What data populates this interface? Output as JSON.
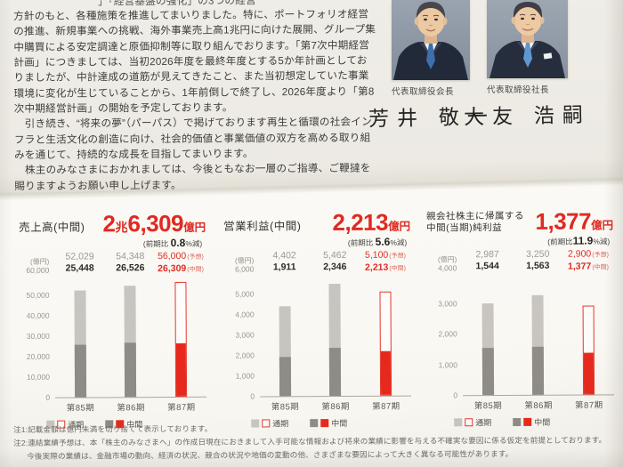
{
  "letter": {
    "partial_top_line": "」「経営基盤の強化」の3つの経営",
    "lines": [
      "方針のもと、各種施策を推進してまいりました。特に、ポートフォリオ経営",
      "の推進、新規事業への挑戦、海外事業売上高1兆円に向けた展開、グループ集",
      "中購買による安定調達と原価抑制等に取り組んでおります。「第7次中期経営",
      "計画」につきましては、当初2026年度を最終年度とする5か年計画としてお",
      "りましたが、中計達成の道筋が見えてきたこと、また当初想定していた事業",
      "環境に変化が生じていることから、1年前倒しで終了し、2026年度より「第8",
      "次中期経営計画」の開始を予定しております。",
      "　引き続き、“将来の夢”（パーパス）で掲げております再生と循環の社会イン",
      "フラと生活文化の創造に向け、社会的価値と事業価値の双方を高める取り組",
      "みを通じて、持続的な成長を目指してまいります。",
      "　株主のみなさまにおかれましては、今後ともなお一層のご指導、ご鞭撻を",
      "賜りますようお願い申し上げます。"
    ]
  },
  "executives": [
    {
      "title": "代表取締役会長",
      "signature": "芳井 敬一"
    },
    {
      "title": "代表取締役社長",
      "signature": "大友 浩嗣"
    }
  ],
  "colors": {
    "accent_red": "#df2a22",
    "bar_red": "#e6291c",
    "bar_gray_light": "#c8c5c0",
    "bar_gray_dark": "#8f8b85"
  },
  "chart_data": [
    {
      "type": "bar",
      "title": "売上高（中間）",
      "title_lines": [
        "売上高(中間)"
      ],
      "headline_parts": [
        {
          "t": "2",
          "k": "big"
        },
        {
          "t": "兆",
          "k": "mid"
        },
        {
          "t": "6,309",
          "k": "big"
        },
        {
          "t": "億円",
          "k": "unit"
        }
      ],
      "yoy_note": {
        "pre": "(前期比 ",
        "val": "0.8",
        "post": "%減)"
      },
      "unit_label": "(億円)",
      "ymax": 60000,
      "ymax_label": "60,000",
      "yticks": [
        {
          "v": 50000,
          "label": "50,000"
        },
        {
          "v": 40000,
          "label": "40,000"
        },
        {
          "v": 30000,
          "label": "30,000"
        },
        {
          "v": 20000,
          "label": "20,000"
        },
        {
          "v": 10000,
          "label": "10,000"
        },
        {
          "v": 0,
          "label": "0"
        }
      ],
      "categories": [
        "第85期",
        "第86期",
        "第87期"
      ],
      "series": [
        {
          "name": "通期",
          "values": [
            52029,
            54348,
            56000
          ],
          "labels": [
            "52,029",
            "54,348",
            "56,000"
          ]
        },
        {
          "name": "中間",
          "values": [
            25448,
            26526,
            26309
          ],
          "labels": [
            "25,448",
            "26,526",
            "26,309"
          ]
        }
      ],
      "third_is_forecast": true,
      "suffix_forecast": "(予想)",
      "suffix_interim": "(中間)"
    },
    {
      "type": "bar",
      "title": "営業利益（中間）",
      "title_lines": [
        "営業利益(中間)"
      ],
      "headline_parts": [
        {
          "t": "2,213",
          "k": "big"
        },
        {
          "t": "億円",
          "k": "unit"
        }
      ],
      "yoy_note": {
        "pre": "(前期比 ",
        "val": "5.6",
        "post": "%減)"
      },
      "unit_label": "(億円)",
      "ymax": 6000,
      "ymax_label": "6,000",
      "yticks": [
        {
          "v": 5000,
          "label": "5,000"
        },
        {
          "v": 4000,
          "label": "4,000"
        },
        {
          "v": 3000,
          "label": "3,000"
        },
        {
          "v": 2000,
          "label": "2,000"
        },
        {
          "v": 1000,
          "label": "1,000"
        },
        {
          "v": 0,
          "label": "0"
        }
      ],
      "categories": [
        "第85期",
        "第86期",
        "第87期"
      ],
      "series": [
        {
          "name": "通期",
          "values": [
            4402,
            5462,
            5100
          ],
          "labels": [
            "4,402",
            "5,462",
            "5,100"
          ]
        },
        {
          "name": "中間",
          "values": [
            1911,
            2346,
            2213
          ],
          "labels": [
            "1,911",
            "2,346",
            "2,213"
          ]
        }
      ],
      "third_is_forecast": true,
      "suffix_forecast": "(予想)",
      "suffix_interim": "(中間)"
    },
    {
      "type": "bar",
      "title": "親会社株主に帰属する中間（当期）純利益",
      "title_lines": [
        "親会社株主に帰属する",
        "中間(当期)純利益"
      ],
      "headline_parts": [
        {
          "t": "1,377",
          "k": "big"
        },
        {
          "t": "億円",
          "k": "unit"
        }
      ],
      "yoy_note": {
        "pre": "(前期比",
        "val": "11.9",
        "post": "%減)"
      },
      "unit_label": "(億円)",
      "ymax": 4000,
      "ymax_label": "4,000",
      "yticks": [
        {
          "v": 3000,
          "label": "3,000"
        },
        {
          "v": 2000,
          "label": "2,000"
        },
        {
          "v": 1000,
          "label": "1,000"
        },
        {
          "v": 0,
          "label": "0"
        }
      ],
      "categories": [
        "第85期",
        "第86期",
        "第87期"
      ],
      "series": [
        {
          "name": "通期",
          "values": [
            2987,
            3250,
            2900
          ],
          "labels": [
            "2,987",
            "3,250",
            "2,900"
          ]
        },
        {
          "name": "中間",
          "values": [
            1544,
            1563,
            1377
          ],
          "labels": [
            "1,544",
            "1,563",
            "1,377"
          ]
        }
      ],
      "third_is_forecast": true,
      "suffix_forecast": "(予想)",
      "suffix_interim": "(中間)"
    }
  ],
  "footnotes": {
    "lines": [
      "注1:記載金額は億円未満を切り捨てて表示しております。",
      "注2:連結業績予想は、本「株主のみなさまへ」の作成日現在におきまして入手可能な情報および将来の業績に影響を与える不確実な要因に係る仮定を前提としております。",
      "今後実際の業績は、金融市場の動向、経済の状況、競合の状況や地価の変動の他、さまざまな要因によって大きく異なる可能性があります。"
    ]
  }
}
